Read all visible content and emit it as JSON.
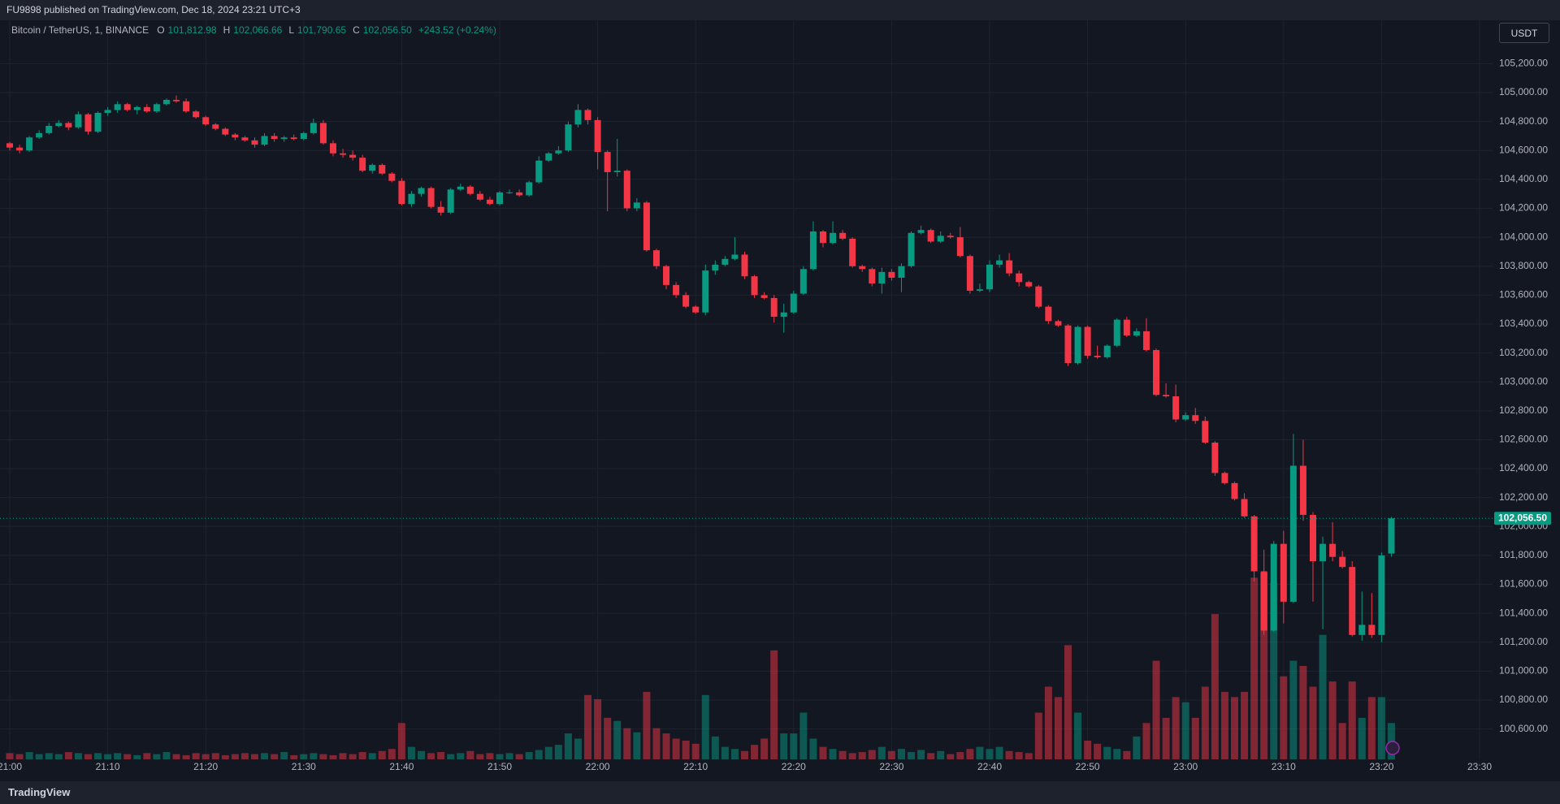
{
  "published": "FU9898 published on TradingView.com, Dec 18, 2024 23:21 UTC+3",
  "currency_button": "USDT",
  "footer": "TradingView",
  "chart_data": {
    "type": "candlestick",
    "title": "Bitcoin / TetherUS, 1, BINANCE",
    "ohlc_header": [
      {
        "label": "O",
        "value": "101,812.98"
      },
      {
        "label": "H",
        "value": "102,066.66"
      },
      {
        "label": "L",
        "value": "101,790.65"
      },
      {
        "label": "C",
        "value": "102,056.50"
      }
    ],
    "change": "+243.52 (+0.24%)",
    "last_price_label": "102,056.50",
    "up_color": "#089981",
    "down_color": "#f23645",
    "grid": true,
    "ylim": [
      100390,
      105500
    ],
    "yticks": [
      {
        "value": 105200,
        "label": "105,200.00"
      },
      {
        "value": 105000,
        "label": "105,000.00"
      },
      {
        "value": 104800,
        "label": "104,800.00"
      },
      {
        "value": 104600,
        "label": "104,600.00"
      },
      {
        "value": 104400,
        "label": "104,400.00"
      },
      {
        "value": 104200,
        "label": "104,200.00"
      },
      {
        "value": 104000,
        "label": "104,000.00"
      },
      {
        "value": 103800,
        "label": "103,800.00"
      },
      {
        "value": 103600,
        "label": "103,600.00"
      },
      {
        "value": 103400,
        "label": "103,400.00"
      },
      {
        "value": 103200,
        "label": "103,200.00"
      },
      {
        "value": 103000,
        "label": "103,000.00"
      },
      {
        "value": 102800,
        "label": "102,800.00"
      },
      {
        "value": 102600,
        "label": "102,600.00"
      },
      {
        "value": 102400,
        "label": "102,400.00"
      },
      {
        "value": 102200,
        "label": "102,200.00"
      },
      {
        "value": 102000,
        "label": "102,000.00"
      },
      {
        "value": 101800,
        "label": "101,800.00"
      },
      {
        "value": 101600,
        "label": "101,600.00"
      },
      {
        "value": 101400,
        "label": "101,400.00"
      },
      {
        "value": 101200,
        "label": "101,200.00"
      },
      {
        "value": 101000,
        "label": "101,000.00"
      },
      {
        "value": 100800,
        "label": "100,800.00"
      },
      {
        "value": 100600,
        "label": "100,600.00"
      }
    ],
    "xticks": [
      "21:00",
      "21:10",
      "21:20",
      "21:30",
      "21:40",
      "21:50",
      "22:00",
      "22:10",
      "22:20",
      "22:30",
      "22:40",
      "22:50",
      "23:00",
      "23:10",
      "23:20",
      "23:30"
    ],
    "x": [
      "21:00",
      "21:01",
      "21:02",
      "21:03",
      "21:04",
      "21:05",
      "21:06",
      "21:07",
      "21:08",
      "21:09",
      "21:10",
      "21:11",
      "21:12",
      "21:13",
      "21:14",
      "21:15",
      "21:16",
      "21:17",
      "21:18",
      "21:19",
      "21:20",
      "21:21",
      "21:22",
      "21:23",
      "21:24",
      "21:25",
      "21:26",
      "21:27",
      "21:28",
      "21:29",
      "21:30",
      "21:31",
      "21:32",
      "21:33",
      "21:34",
      "21:35",
      "21:36",
      "21:37",
      "21:38",
      "21:39",
      "21:40",
      "21:41",
      "21:42",
      "21:43",
      "21:44",
      "21:45",
      "21:46",
      "21:47",
      "21:48",
      "21:49",
      "21:50",
      "21:51",
      "21:52",
      "21:53",
      "21:54",
      "21:55",
      "21:56",
      "21:57",
      "21:58",
      "21:59",
      "22:00",
      "22:01",
      "22:02",
      "22:03",
      "22:04",
      "22:05",
      "22:06",
      "22:07",
      "22:08",
      "22:09",
      "22:10",
      "22:11",
      "22:12",
      "22:13",
      "22:14",
      "22:15",
      "22:16",
      "22:17",
      "22:18",
      "22:19",
      "22:20",
      "22:21",
      "22:22",
      "22:23",
      "22:24",
      "22:25",
      "22:26",
      "22:27",
      "22:28",
      "22:29",
      "22:30",
      "22:31",
      "22:32",
      "22:33",
      "22:34",
      "22:35",
      "22:36",
      "22:37",
      "22:38",
      "22:39",
      "22:40",
      "22:41",
      "22:42",
      "22:43",
      "22:44",
      "22:45",
      "22:46",
      "22:47",
      "22:48",
      "22:49",
      "22:50",
      "22:51",
      "22:52",
      "22:53",
      "22:54",
      "22:55",
      "22:56",
      "22:57",
      "22:58",
      "22:59",
      "23:00",
      "23:01",
      "23:02",
      "23:03",
      "23:04",
      "23:05",
      "23:06",
      "23:07",
      "23:08",
      "23:09",
      "23:10",
      "23:11",
      "23:12",
      "23:13",
      "23:14",
      "23:15",
      "23:16",
      "23:17",
      "23:18",
      "23:19",
      "23:20",
      "23:21"
    ],
    "open": [
      104650,
      104620,
      104600,
      104690,
      104720,
      104770,
      104790,
      104760,
      104850,
      104730,
      104860,
      104880,
      104920,
      104880,
      104900,
      104870,
      104920,
      104950,
      104940,
      104870,
      104830,
      104780,
      104750,
      104710,
      104690,
      104670,
      104640,
      104700,
      104680,
      104690,
      104680,
      104720,
      104790,
      104650,
      104580,
      104570,
      104550,
      104460,
      104500,
      104440,
      104390,
      104230,
      104300,
      104340,
      104210,
      104170,
      104330,
      104350,
      104300,
      104260,
      104230,
      104310,
      104310,
      104290,
      104380,
      104530,
      104580,
      104600,
      104780,
      104880,
      104810,
      104590,
      104450,
      104460,
      104200,
      104240,
      103910,
      103800,
      103670,
      103600,
      103520,
      103480,
      103770,
      103810,
      103850,
      103880,
      103730,
      103600,
      103580,
      103450,
      103480,
      103610,
      103780,
      104040,
      103960,
      104030,
      103990,
      103800,
      103780,
      103680,
      103760,
      103720,
      103800,
      104030,
      104050,
      103970,
      104010,
      104000,
      103870,
      103630,
      103640,
      103810,
      103840,
      103750,
      103690,
      103660,
      103520,
      103420,
      103390,
      103130,
      103380,
      103180,
      103170,
      103250,
      103430,
      103320,
      103350,
      103220,
      102910,
      102900,
      102740,
      102770,
      102730,
      102580,
      102370,
      102300,
      102190,
      102070,
      101690,
      101280,
      101880,
      101480,
      102420,
      102080,
      101760,
      101880,
      101790,
      101720,
      101250,
      101320,
      101250,
      101812.98
    ],
    "high": [
      104660,
      104640,
      104700,
      104740,
      104790,
      104810,
      104800,
      104870,
      104860,
      104870,
      104900,
      104940,
      104930,
      104910,
      104920,
      104930,
      104960,
      104980,
      104960,
      104880,
      104840,
      104790,
      104760,
      104720,
      104700,
      104690,
      104720,
      104720,
      104700,
      104710,
      104730,
      104820,
      104810,
      104670,
      104610,
      104600,
      104570,
      104510,
      104510,
      104450,
      104410,
      104320,
      104350,
      104350,
      104250,
      104340,
      104370,
      104360,
      104320,
      104280,
      104320,
      104330,
      104330,
      104390,
      104560,
      104590,
      104630,
      104800,
      104920,
      104890,
      104830,
      104600,
      104680,
      104470,
      104270,
      104250,
      103920,
      103810,
      103690,
      103620,
      103530,
      103810,
      103840,
      103870,
      104000,
      103900,
      103740,
      103620,
      103600,
      103540,
      103630,
      103800,
      104110,
      104050,
      104110,
      104050,
      104000,
      103810,
      103790,
      103790,
      103780,
      103820,
      104040,
      104080,
      104060,
      104040,
      104030,
      104070,
      103880,
      103680,
      103840,
      103880,
      103890,
      103770,
      103700,
      103670,
      103530,
      103430,
      103400,
      103390,
      103390,
      103250,
      103260,
      103440,
      103450,
      103370,
      103440,
      103230,
      102990,
      102980,
      102790,
      102820,
      102760,
      102590,
      102380,
      102310,
      102230,
      102080,
      101840,
      101900,
      101970,
      102640,
      102600,
      102100,
      101930,
      102030,
      101830,
      101760,
      101550,
      101540,
      101820,
      102066.66
    ],
    "low": [
      104600,
      104580,
      104590,
      104680,
      104710,
      104760,
      104740,
      104750,
      104710,
      104720,
      104840,
      104860,
      104870,
      104850,
      104860,
      104860,
      104910,
      104930,
      104860,
      104820,
      104770,
      104740,
      104700,
      104670,
      104660,
      104620,
      104630,
      104660,
      104660,
      104670,
      104670,
      104710,
      104640,
      104560,
      104550,
      104530,
      104450,
      104440,
      104430,
      104380,
      104220,
      104210,
      104280,
      104200,
      104150,
      104160,
      104320,
      104290,
      104250,
      104220,
      104220,
      104300,
      104280,
      104280,
      104370,
      104520,
      104570,
      104590,
      104760,
      104780,
      104470,
      104180,
      104420,
      104180,
      104180,
      103900,
      103780,
      103640,
      103580,
      103510,
      103470,
      103460,
      103740,
      103800,
      103840,
      103710,
      103580,
      103570,
      103410,
      103340,
      103470,
      103600,
      103770,
      103930,
      103950,
      103980,
      103790,
      103760,
      103660,
      103610,
      103700,
      103620,
      103790,
      104020,
      103960,
      103960,
      103990,
      103860,
      103610,
      103620,
      103620,
      103790,
      103730,
      103660,
      103650,
      103510,
      103400,
      103380,
      103110,
      103120,
      103160,
      103160,
      103160,
      103240,
      103310,
      103310,
      103210,
      102900,
      102890,
      102720,
      102730,
      102710,
      102570,
      102350,
      102290,
      102180,
      102060,
      101620,
      101250,
      101270,
      101330,
      101470,
      102040,
      101480,
      101290,
      101760,
      101710,
      101240,
      101210,
      101230,
      101200,
      101790.65
    ],
    "close": [
      104620,
      104600,
      104690,
      104720,
      104770,
      104790,
      104760,
      104850,
      104730,
      104860,
      104880,
      104920,
      104880,
      104900,
      104870,
      104920,
      104950,
      104940,
      104870,
      104830,
      104780,
      104750,
      104710,
      104690,
      104670,
      104640,
      104700,
      104680,
      104690,
      104680,
      104720,
      104790,
      104650,
      104580,
      104570,
      104550,
      104460,
      104500,
      104440,
      104390,
      104230,
      104300,
      104340,
      104210,
      104170,
      104330,
      104350,
      104300,
      104260,
      104230,
      104310,
      104310,
      104290,
      104380,
      104530,
      104580,
      104600,
      104780,
      104880,
      104810,
      104590,
      104450,
      104460,
      104200,
      104240,
      103910,
      103800,
      103670,
      103600,
      103520,
      103480,
      103770,
      103810,
      103850,
      103880,
      103730,
      103600,
      103580,
      103450,
      103480,
      103610,
      103780,
      104040,
      103960,
      104030,
      103990,
      103800,
      103780,
      103680,
      103760,
      103720,
      103800,
      104030,
      104050,
      103970,
      104010,
      104000,
      103870,
      103630,
      103640,
      103810,
      103840,
      103750,
      103690,
      103660,
      103520,
      103420,
      103390,
      103130,
      103380,
      103180,
      103170,
      103250,
      103430,
      103320,
      103350,
      103220,
      102910,
      102900,
      102740,
      102770,
      102730,
      102580,
      102370,
      102300,
      102190,
      102070,
      101690,
      101280,
      101880,
      101480,
      102420,
      102080,
      101760,
      101880,
      101790,
      101720,
      101250,
      101320,
      101250,
      101800,
      102056.5
    ],
    "volume": [
      6,
      5,
      7,
      5,
      6,
      5,
      7,
      6,
      5,
      6,
      5,
      6,
      5,
      4,
      6,
      5,
      7,
      5,
      4,
      6,
      5,
      6,
      4,
      5,
      6,
      5,
      6,
      5,
      7,
      4,
      5,
      6,
      5,
      4,
      6,
      5,
      7,
      6,
      8,
      10,
      35,
      12,
      8,
      6,
      7,
      5,
      6,
      8,
      5,
      6,
      5,
      6,
      5,
      7,
      9,
      12,
      14,
      25,
      20,
      62,
      58,
      40,
      37,
      30,
      26,
      65,
      30,
      25,
      20,
      18,
      15,
      62,
      22,
      12,
      10,
      8,
      14,
      20,
      105,
      25,
      25,
      45,
      20,
      12,
      10,
      8,
      6,
      7,
      9,
      12,
      8,
      10,
      7,
      9,
      6,
      8,
      5,
      7,
      10,
      12,
      10,
      12,
      8,
      7,
      6,
      45,
      70,
      60,
      110,
      45,
      18,
      15,
      12,
      10,
      8,
      22,
      35,
      95,
      40,
      60,
      55,
      40,
      70,
      140,
      65,
      60,
      65,
      175,
      180,
      170,
      80,
      95,
      90,
      70,
      120,
      75,
      35,
      75,
      40,
      60,
      60,
      35
    ]
  }
}
